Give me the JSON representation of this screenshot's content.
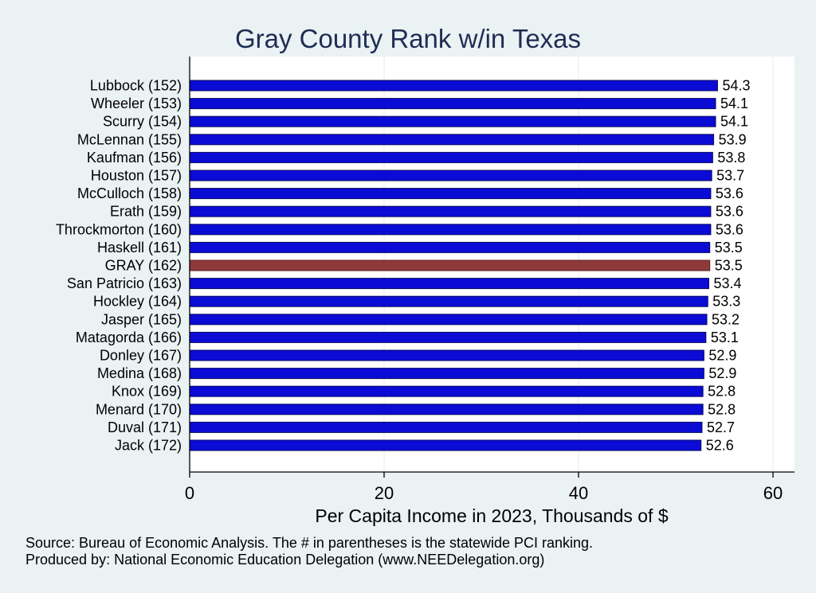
{
  "chart_data": {
    "type": "bar",
    "orientation": "horizontal",
    "title": "Gray County Rank w/in Texas",
    "xlabel": "Per Capita Income in 2023, Thousands of $",
    "ylabel": "",
    "xlim": [
      0,
      62
    ],
    "xticks": [
      0,
      20,
      40,
      60
    ],
    "grid": true,
    "categories": [
      "Lubbock (152)",
      "Wheeler (153)",
      "Scurry (154)",
      "McLennan (155)",
      "Kaufman (156)",
      "Houston (157)",
      "McCulloch (158)",
      "Erath (159)",
      "Throckmorton (160)",
      "Haskell (161)",
      "GRAY (162)",
      "San Patricio (163)",
      "Hockley (164)",
      "Jasper (165)",
      "Matagorda (166)",
      "Donley (167)",
      "Medina (168)",
      "Knox (169)",
      "Menard (170)",
      "Duval (171)",
      "Jack (172)"
    ],
    "values": [
      54.3,
      54.1,
      54.1,
      53.9,
      53.8,
      53.7,
      53.6,
      53.6,
      53.6,
      53.5,
      53.5,
      53.4,
      53.3,
      53.2,
      53.1,
      52.9,
      52.9,
      52.8,
      52.8,
      52.7,
      52.6
    ],
    "value_labels": [
      "54.3",
      "54.1",
      "54.1",
      "53.9",
      "53.8",
      "53.7",
      "53.6",
      "53.6",
      "53.6",
      "53.5",
      "53.5",
      "53.4",
      "53.3",
      "53.2",
      "53.1",
      "52.9",
      "52.9",
      "52.8",
      "52.8",
      "52.7",
      "52.6"
    ],
    "highlight_category": "GRAY (162)",
    "colors": {
      "bar": "#0b0bd6",
      "bar_edge": "#0a0a5e",
      "highlight": "#8f3a3a",
      "plot_bg": "#ffffff",
      "page_bg": "#eaf2f3",
      "title": "#1f2d55",
      "grid": "#e8eef0"
    }
  },
  "notes": [
    "Source: Bureau of Economic Analysis. The # in parentheses is the statewide PCI ranking.",
    "Produced by: National Economic Education Delegation (www.NEEDelegation.org)"
  ]
}
